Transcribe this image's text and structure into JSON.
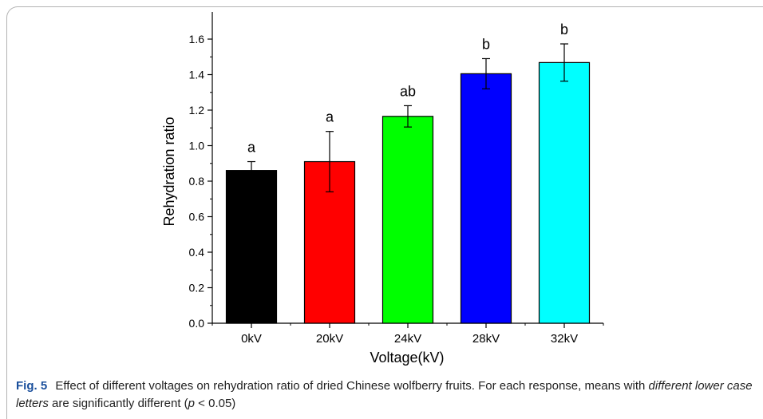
{
  "chart_data": {
    "type": "bar",
    "xlabel": "Voltage(kV)",
    "ylabel": "Rehydration ratio",
    "ylim": [
      0,
      1.7
    ],
    "yticks": [
      "0.0",
      "0.2",
      "0.4",
      "0.6",
      "0.8",
      "1.0",
      "1.2",
      "1.4",
      "1.6"
    ],
    "grid": false,
    "categories": [
      "0kV",
      "20kV",
      "24kV",
      "28kV",
      "32kV"
    ],
    "values": [
      0.86,
      0.91,
      1.165,
      1.405,
      1.468
    ],
    "errors": [
      0.05,
      0.17,
      0.06,
      0.085,
      0.105
    ],
    "significance_letters": [
      "a",
      "a",
      "ab",
      "b",
      "b"
    ],
    "colors": [
      "#000000",
      "#ff0000",
      "#00ff00",
      "#0000ff",
      "#00ffff"
    ]
  },
  "caption": {
    "fig_label": "Fig. 5",
    "text_part1": "Effect of different voltages on rehydration ratio of dried Chinese wolfberry fruits. For each response, means with ",
    "text_italic": "different lower case letters",
    "text_part2": " are significantly different (",
    "text_p": "p",
    "text_part3": " < 0.05)"
  }
}
